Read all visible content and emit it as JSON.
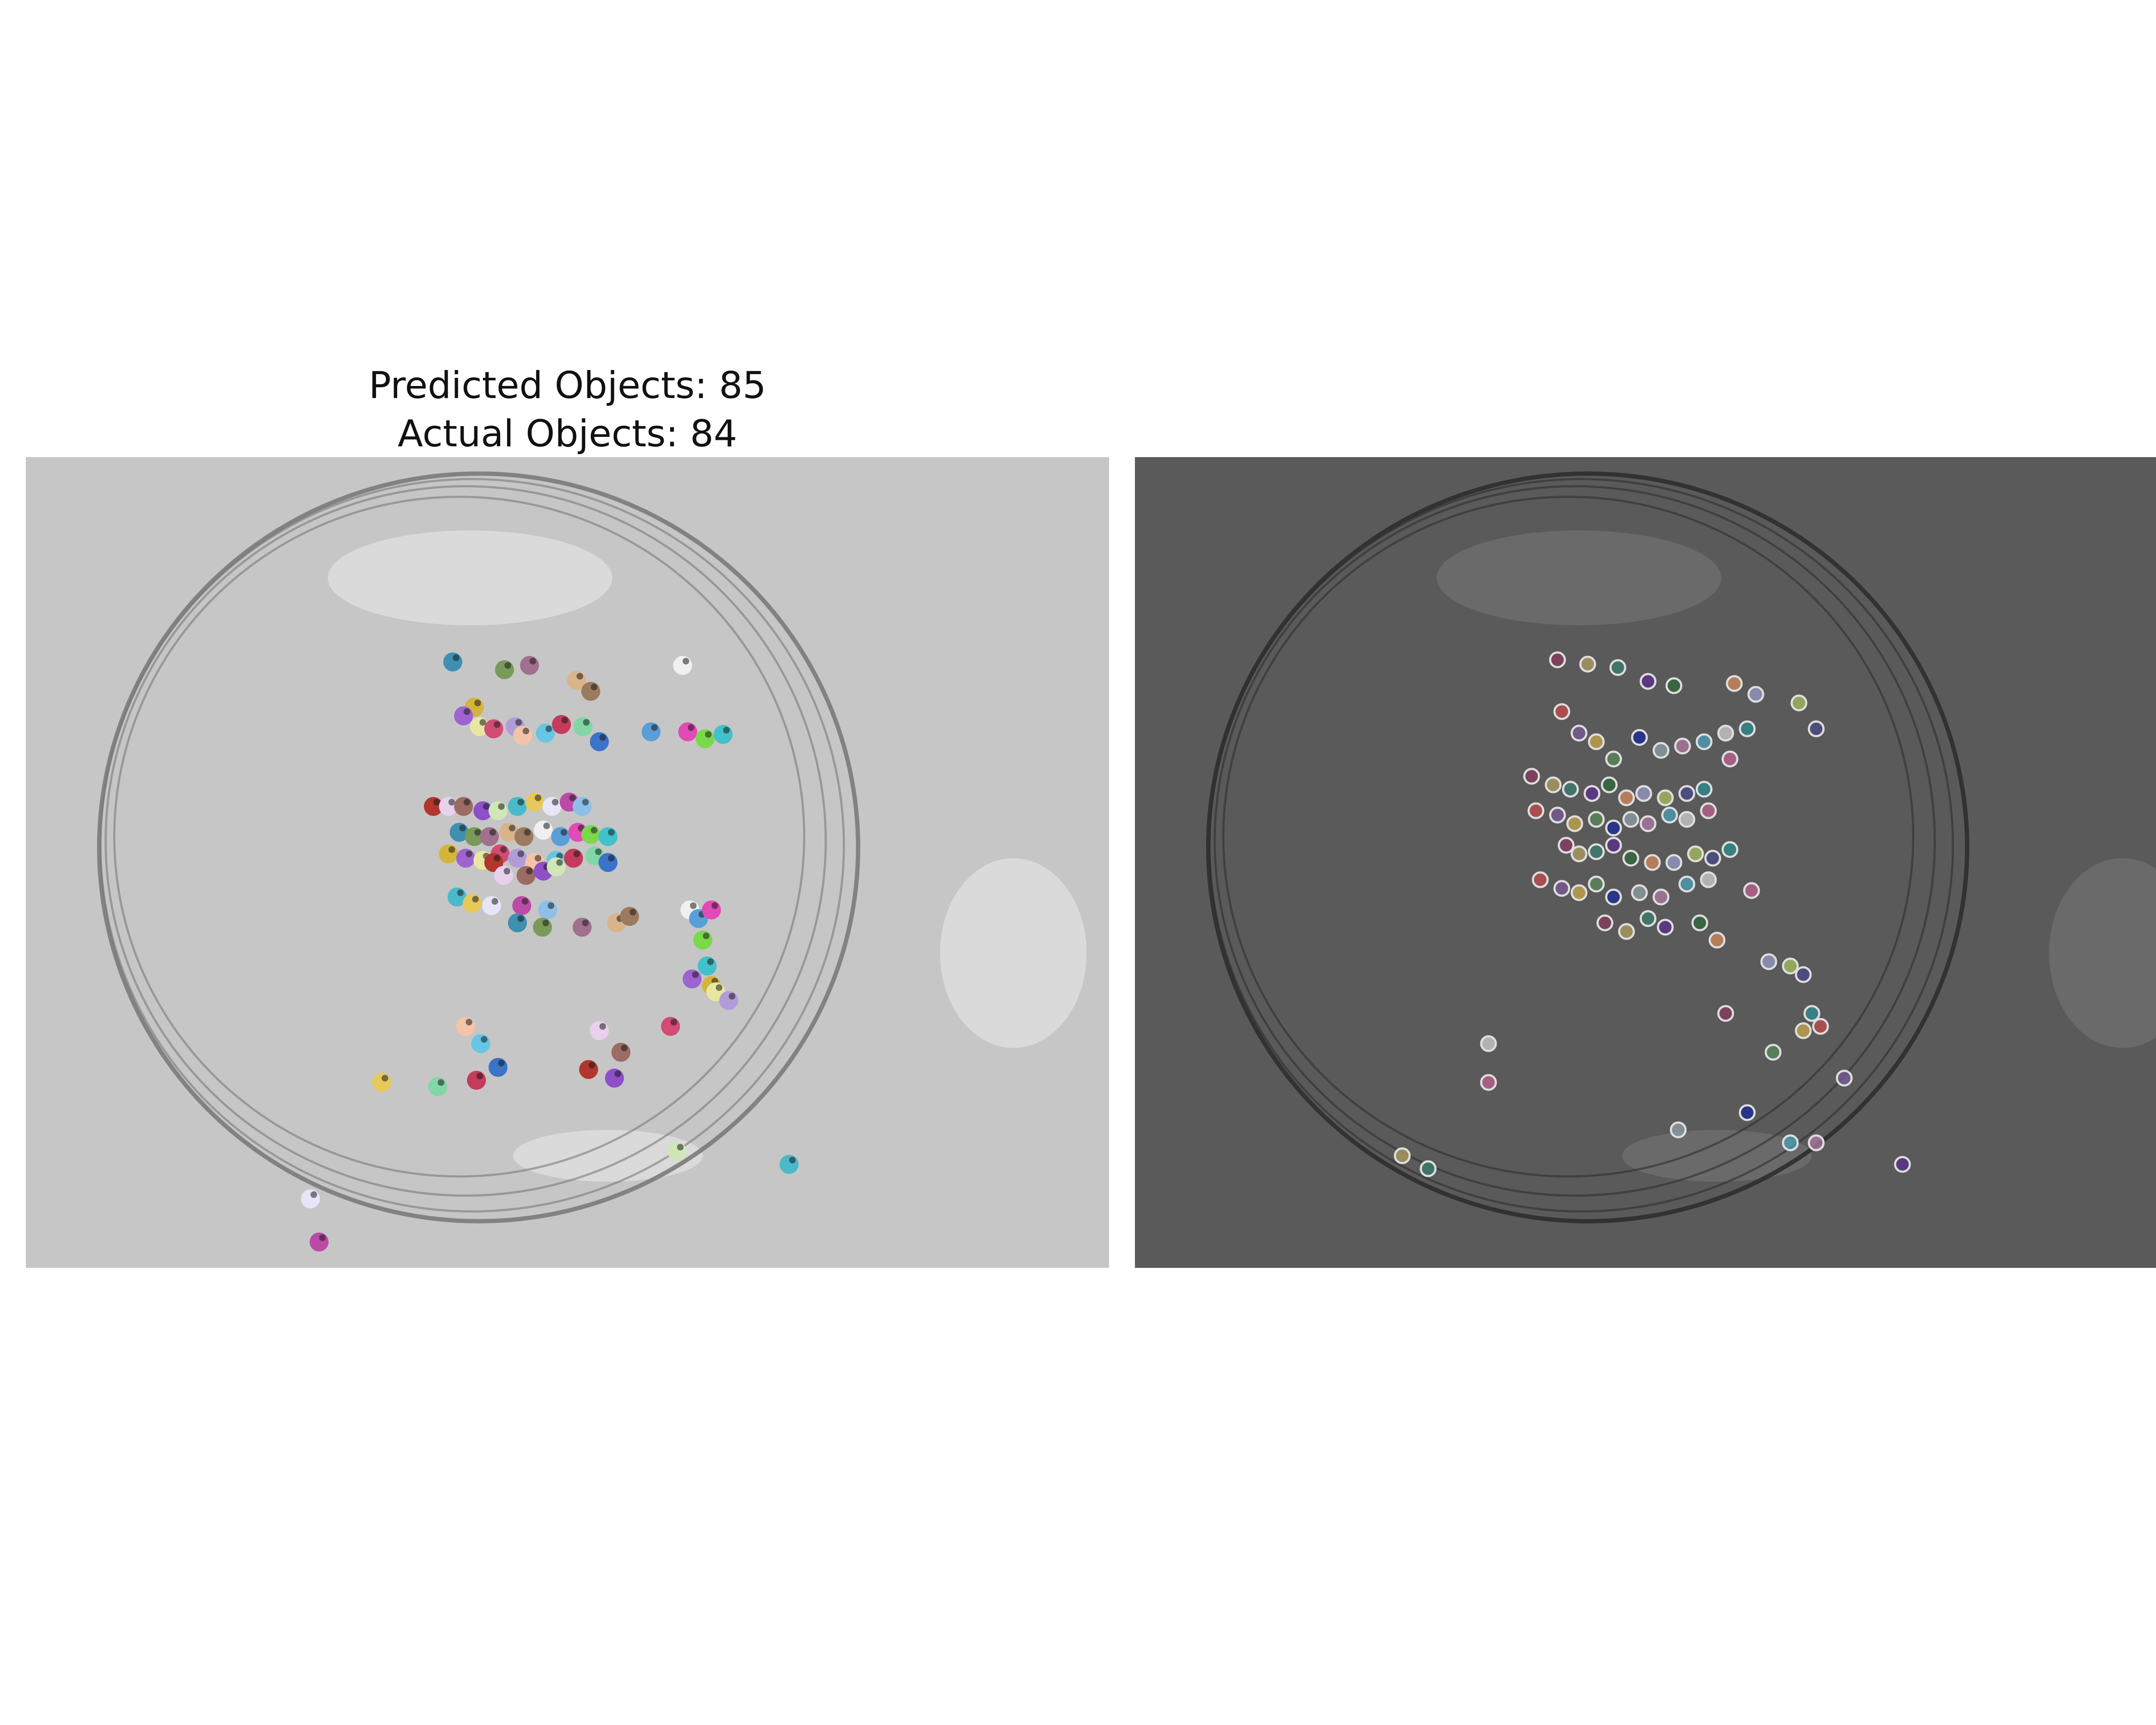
{
  "title": {
    "predicted_label": "Predicted Objects: 85",
    "actual_label": "Actual Objects: 84"
  },
  "panels": {
    "left": {
      "name": "predicted-segmentation-overlay",
      "background": "#c6c6c6",
      "dish_stroke": "#7a7a7a"
    },
    "right": {
      "name": "ground-truth-overlay",
      "background": "#5a5a5a",
      "dish_stroke": "#2e2e2e"
    }
  },
  "colors": {
    "predicted_palette": [
      "#3f8fb0",
      "#7a9a5a",
      "#a0708e",
      "#d9b48a",
      "#9c7a5e",
      "#f0f0f0",
      "#5a9ed8",
      "#e24ab7",
      "#7ad94b",
      "#41c1c9",
      "#d4b43a",
      "#9d63d0",
      "#e7e7a0",
      "#d24c73",
      "#b19cd9",
      "#f5c4a8",
      "#67c5e6",
      "#c43b5b",
      "#81d7a6",
      "#3a73c7",
      "#b2362e",
      "#e9d0ee",
      "#9b6c63",
      "#8e4fc9",
      "#cfe7b8",
      "#4ab9c9",
      "#e6c95a",
      "#e6e6f8",
      "#bc4aa7",
      "#8ec0e7"
    ],
    "actual_palette": [
      "#8a3a60",
      "#b0a060",
      "#3a7f70",
      "#5b2f8f",
      "#2f6a3a",
      "#d48a5a",
      "#9a9ac8",
      "#a8c060",
      "#4a4a8a",
      "#2c8c90",
      "#c44b4b",
      "#7a5a9a",
      "#c9a94a",
      "#5a8a5a",
      "#1a2a9a",
      "#8fa0a8",
      "#b07aa0",
      "#4aa0b8",
      "#d0d0d0",
      "#c06090"
    ]
  }
}
